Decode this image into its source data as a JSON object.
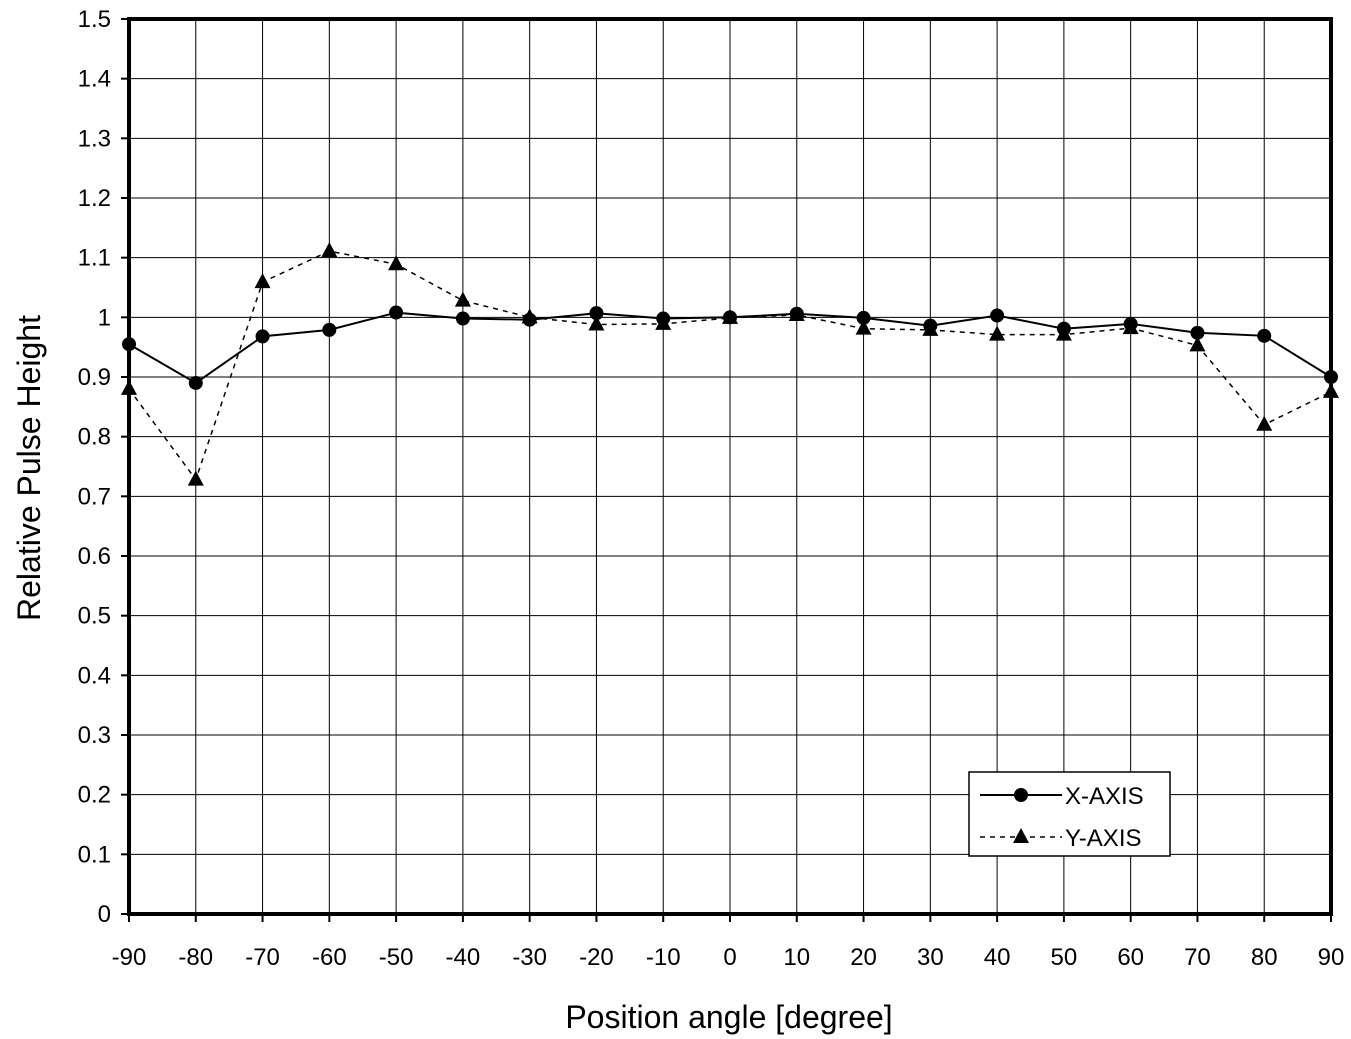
{
  "chart_data": {
    "type": "line",
    "title": "",
    "xlabel": "Position angle [degree]",
    "ylabel": "Relative Pulse Height",
    "xlim": [
      -90,
      90
    ],
    "ylim": [
      0,
      1.5
    ],
    "x_ticks": [
      "-90",
      "-80",
      "-70",
      "-60",
      "-50",
      "-40",
      "-30",
      "-20",
      "-10",
      "0",
      "10",
      "20",
      "30",
      "40",
      "50",
      "60",
      "70",
      "80",
      "90"
    ],
    "y_ticks": [
      "0",
      "0.1",
      "0.2",
      "0.3",
      "0.4",
      "0.5",
      "0.6",
      "0.7",
      "0.8",
      "0.9",
      "1",
      "1.1",
      "1.2",
      "1.3",
      "1.4",
      "1.5"
    ],
    "grid": true,
    "legend_position": "bottom-right",
    "x": [
      -90,
      -80,
      -70,
      -60,
      -50,
      -40,
      -30,
      -20,
      -10,
      0,
      10,
      20,
      30,
      40,
      50,
      60,
      70,
      80,
      90
    ],
    "series": [
      {
        "name": "X-AXIS",
        "marker": "circle",
        "line_style": "solid",
        "color": "#000000",
        "values": [
          0.955,
          0.89,
          0.968,
          0.979,
          1.008,
          0.998,
          0.996,
          1.007,
          0.998,
          1.0,
          1.006,
          0.999,
          0.986,
          1.003,
          0.981,
          0.989,
          0.974,
          0.969,
          0.9
        ]
      },
      {
        "name": "Y-AXIS",
        "marker": "triangle",
        "line_style": "dashed",
        "color": "#000000",
        "values": [
          0.88,
          0.728,
          1.059,
          1.111,
          1.089,
          1.028,
          1.0,
          0.988,
          0.989,
          0.999,
          1.004,
          0.981,
          0.979,
          0.971,
          0.971,
          0.982,
          0.953,
          0.82,
          0.875
        ]
      }
    ]
  }
}
